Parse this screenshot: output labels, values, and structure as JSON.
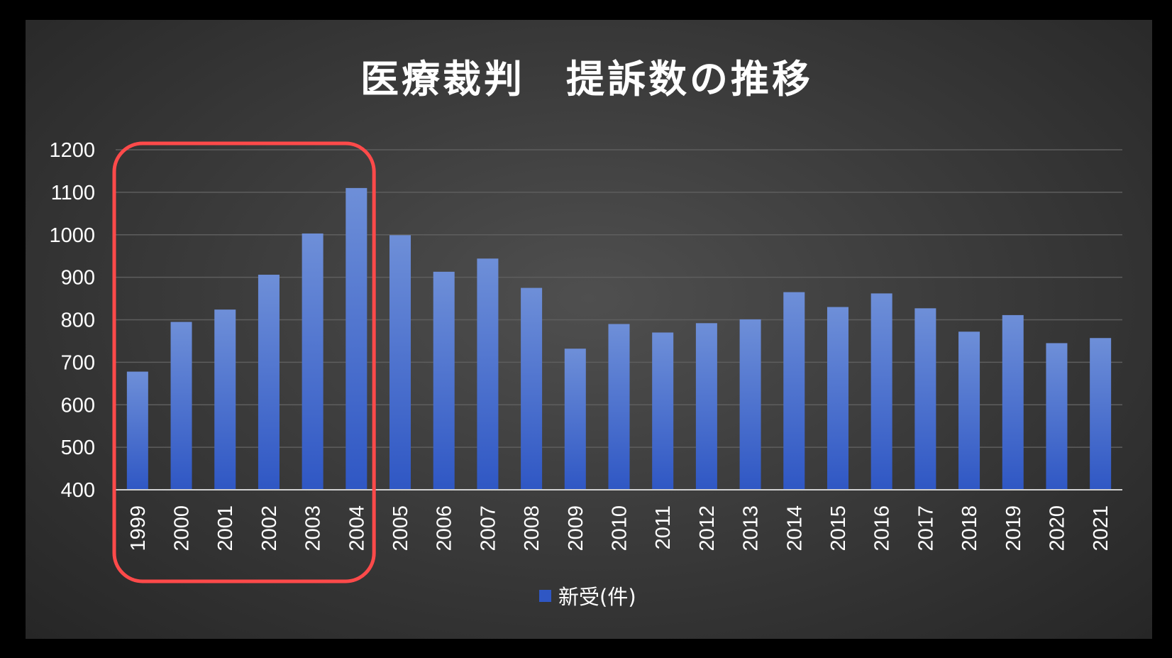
{
  "colors": {
    "bar_top": "#6e8fd8",
    "bar_bottom": "#2f57c4",
    "highlight": "#ff4a4a"
  },
  "chart_data": {
    "type": "bar",
    "title": "医療裁判　提訴数の推移",
    "xlabel": "",
    "ylabel": "",
    "ylim": [
      400,
      1200
    ],
    "yticks": [
      1200,
      1100,
      1000,
      900,
      800,
      700,
      600,
      500,
      400
    ],
    "grid": true,
    "legend_position": "bottom",
    "categories": [
      "1999",
      "2000",
      "2001",
      "2002",
      "2003",
      "2004",
      "2005",
      "2006",
      "2007",
      "2008",
      "2009",
      "2010",
      "2011",
      "2012",
      "2013",
      "2014",
      "2015",
      "2016",
      "2017",
      "2018",
      "2019",
      "2020",
      "2021"
    ],
    "series": [
      {
        "name": "新受(件)",
        "values": [
          678,
          795,
          824,
          906,
          1003,
          1110,
          999,
          913,
          944,
          875,
          732,
          790,
          770,
          792,
          801,
          865,
          830,
          862,
          827,
          772,
          811,
          745,
          757
        ]
      }
    ],
    "highlight_categories": [
      "1999",
      "2004"
    ]
  }
}
